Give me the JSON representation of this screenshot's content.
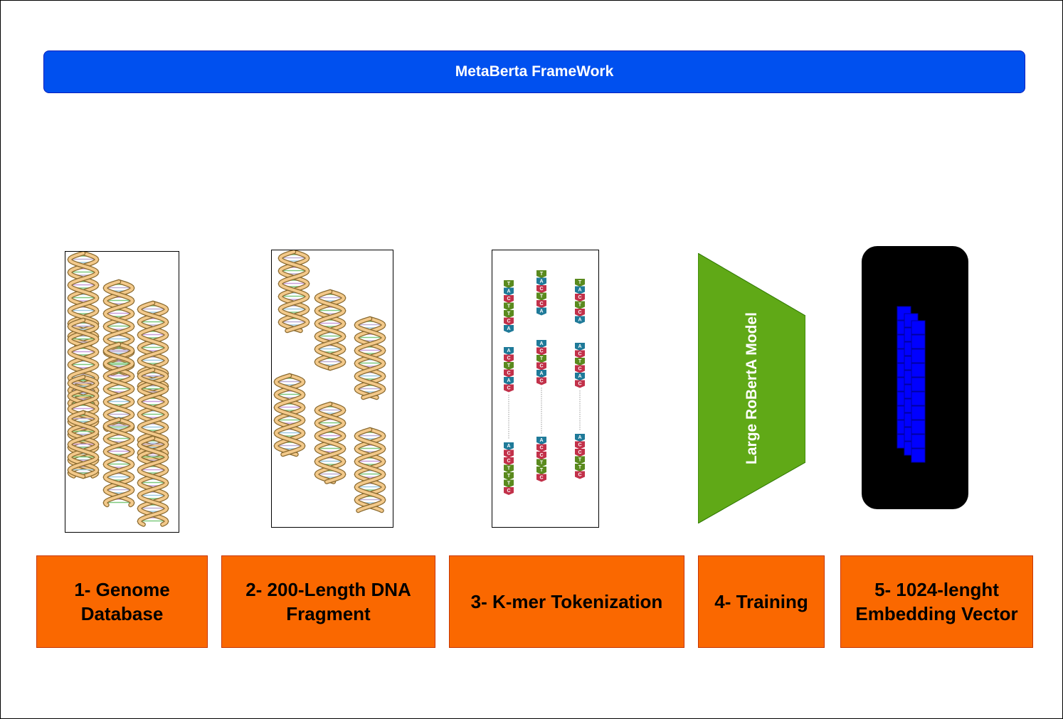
{
  "title": "MetaBerta FrameWork",
  "steps": [
    {
      "label_line1": "1- Genome",
      "label_line2": "Database"
    },
    {
      "label_line1": "2- 200-Length DNA",
      "label_line2": "Fragment"
    },
    {
      "label": "3- K-mer Tokenization"
    },
    {
      "label": "4- Training"
    },
    {
      "label_line1": "5- 1024-lenght",
      "label_line2": "Embedding Vector"
    }
  ],
  "model": {
    "label": "Large RoBertA Model"
  },
  "kmer": {
    "columns": [
      [
        [
          "T",
          "A",
          "C",
          "T",
          "T",
          "C",
          "A"
        ],
        [
          "A",
          "C",
          "T",
          "C",
          "A",
          "C"
        ],
        [
          "A",
          "C",
          "C",
          "T",
          "T",
          "T",
          "C"
        ]
      ],
      [
        [
          "T",
          "A",
          "C",
          "T",
          "C",
          "A"
        ],
        [
          "A",
          "C",
          "T",
          "C",
          "A",
          "C"
        ],
        [
          "A",
          "C",
          "C",
          "T",
          "T",
          "C"
        ]
      ],
      [
        [
          "T",
          "A",
          "C",
          "T",
          "C",
          "A"
        ],
        [
          "A",
          "C",
          "T",
          "C",
          "A",
          "C"
        ],
        [
          "A",
          "C",
          "C",
          "T",
          "T",
          "C"
        ]
      ]
    ],
    "colors": {
      "T": "#5a8a1e",
      "A": "#1f7a99",
      "C": "#c2314a"
    }
  }
}
